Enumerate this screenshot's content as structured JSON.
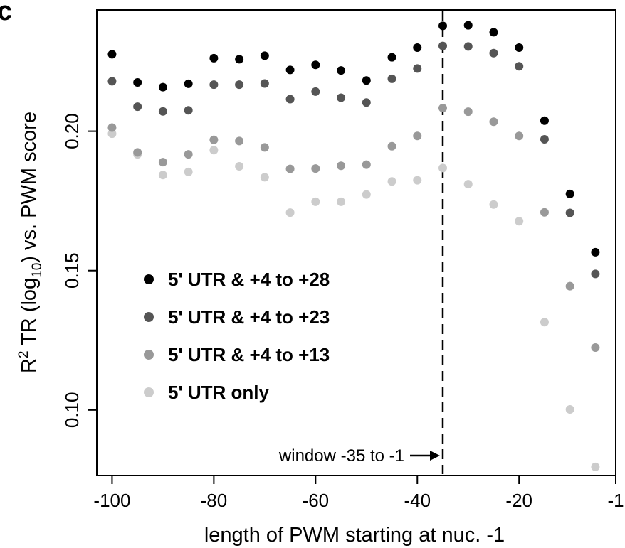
{
  "panel_label": "c",
  "chart_data": {
    "type": "scatter",
    "xlabel": "length of PWM starting at nuc. -1",
    "ylabel_parts": [
      "R",
      "2",
      " TR (log",
      "10",
      ") vs. PWM score"
    ],
    "xlim": [
      -103,
      -1
    ],
    "ylim": [
      0.0765,
      0.2435
    ],
    "x_ticks": [
      -100,
      -80,
      -60,
      -40,
      -20,
      -1
    ],
    "x_tick_labels": [
      "-100",
      "-80",
      "-60",
      "-40",
      "-20",
      "-1"
    ],
    "y_ticks": [
      0.1,
      0.15,
      0.2
    ],
    "y_tick_labels": [
      "0.10",
      "0.15",
      "0.20"
    ],
    "grid": false,
    "legend_position": "center-left",
    "x": [
      -100,
      -95,
      -90,
      -85,
      -80,
      -75,
      -70,
      -65,
      -60,
      -55,
      -50,
      -45,
      -40,
      -35,
      -30,
      -25,
      -20,
      -15,
      -10,
      -5
    ],
    "series": [
      {
        "name": "5' UTR & +4 to +28",
        "color": "#000000",
        "values": [
          0.2276,
          0.2175,
          0.2158,
          0.217,
          0.2262,
          0.2258,
          0.2271,
          0.222,
          0.2238,
          0.2218,
          0.2182,
          0.2265,
          0.23,
          0.2378,
          0.238,
          0.2355,
          0.23,
          0.2038,
          0.1775,
          0.1566
        ]
      },
      {
        "name": "5' UTR & +4 to +23",
        "color": "#555555",
        "values": [
          0.2179,
          0.2088,
          0.2071,
          0.2075,
          0.2167,
          0.2167,
          0.2171,
          0.2115,
          0.2142,
          0.212,
          0.2103,
          0.2188,
          0.2225,
          0.2306,
          0.2304,
          0.228,
          0.2233,
          0.1971,
          0.1707,
          0.1488
        ]
      },
      {
        "name": "5' UTR & +4 to +13",
        "color": "#999999",
        "values": [
          0.2013,
          0.1924,
          0.1889,
          0.1917,
          0.1969,
          0.1965,
          0.1942,
          0.1865,
          0.1866,
          0.1876,
          0.188,
          0.1946,
          0.1983,
          0.2083,
          0.207,
          0.2034,
          0.1983,
          0.1709,
          0.1444,
          0.1224
        ]
      },
      {
        "name": "5' UTR only",
        "color": "#cccccc",
        "values": [
          0.1991,
          0.1917,
          0.1843,
          0.1854,
          0.1932,
          0.1874,
          0.1835,
          0.1708,
          0.1747,
          0.1747,
          0.1773,
          0.182,
          0.1824,
          0.1868,
          0.181,
          0.1737,
          0.1677,
          0.1315,
          0.1002,
          0.0796
        ]
      }
    ],
    "annotation": {
      "text": "window -35 to -1",
      "line_x": -35
    }
  }
}
